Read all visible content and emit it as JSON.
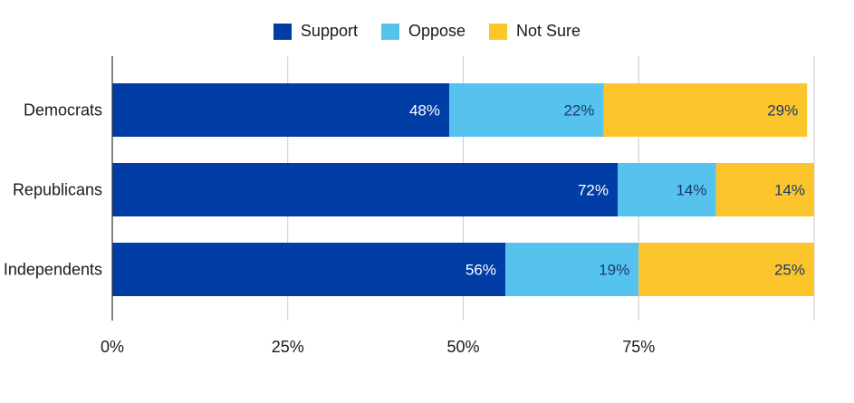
{
  "chart_data": {
    "type": "bar",
    "orientation": "horizontal",
    "stacked": true,
    "categories": [
      "Democrats",
      "Republicans",
      "Independents"
    ],
    "series": [
      {
        "name": "Support",
        "color": "#003da5",
        "values": [
          48,
          72,
          56
        ],
        "labels": [
          "48%",
          "72%",
          "56%"
        ]
      },
      {
        "name": "Oppose",
        "color": "#56c3ee",
        "values": [
          22,
          14,
          19
        ],
        "labels": [
          "22%",
          "14%",
          "19%"
        ]
      },
      {
        "name": "Not Sure",
        "color": "#fdc52c",
        "values": [
          29,
          14,
          25
        ],
        "labels": [
          "29%",
          "14%",
          "25%"
        ]
      }
    ],
    "x_ticks": [
      {
        "value": 0,
        "label": "0%"
      },
      {
        "value": 25,
        "label": "25%"
      },
      {
        "value": 50,
        "label": "50%"
      },
      {
        "value": 75,
        "label": "75%"
      }
    ],
    "xlim": [
      0,
      100
    ],
    "grid": true,
    "legend_position": "top-center",
    "title": "",
    "xlabel": "",
    "ylabel": ""
  }
}
